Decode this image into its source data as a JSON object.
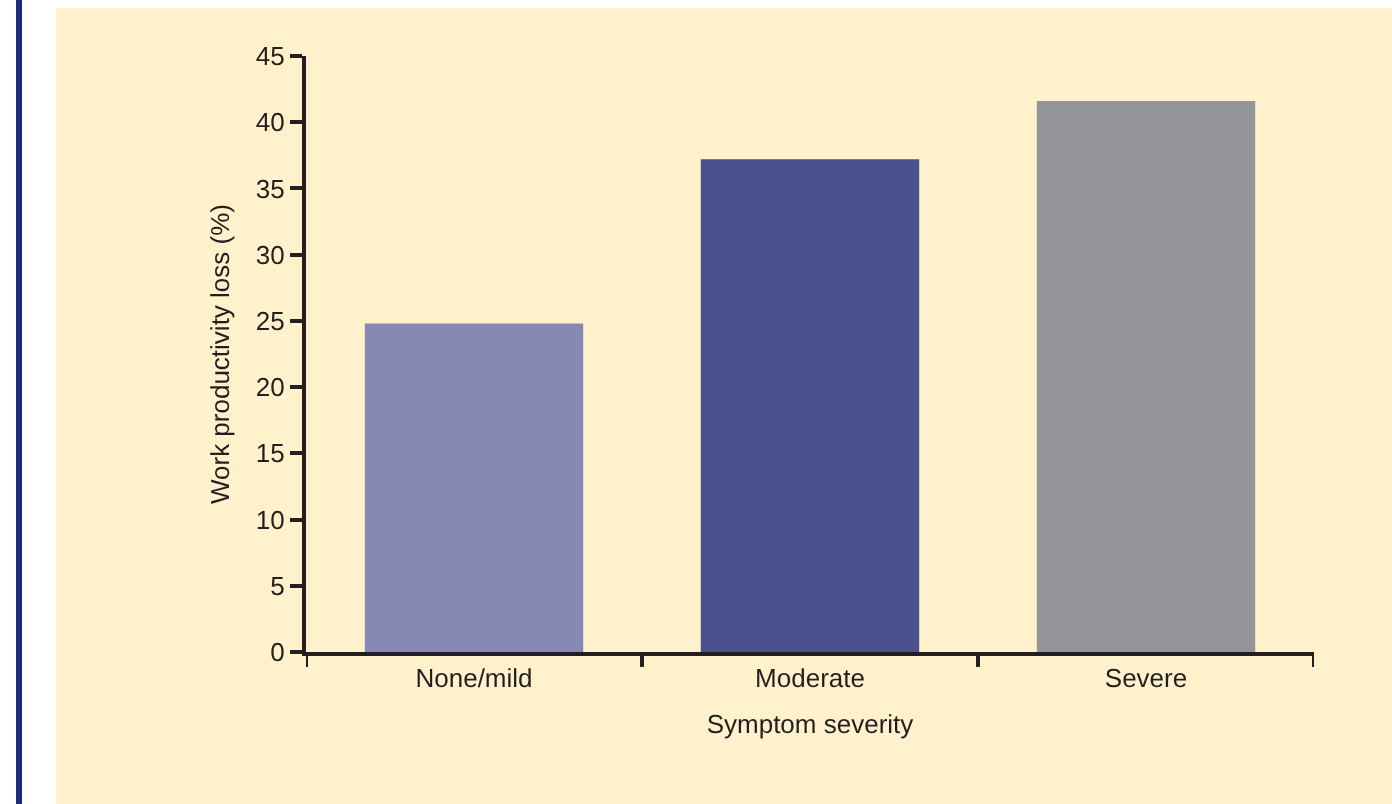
{
  "chart_data": {
    "type": "bar",
    "categories": [
      "None/mild",
      "Moderate",
      "Severe"
    ],
    "values": [
      24.8,
      37.2,
      41.6
    ],
    "colors": [
      "#8888b5",
      "#4b518e",
      "#939598"
    ],
    "xlabel": "Symptom severity",
    "ylabel": "Work productivity loss (%)",
    "ylim": [
      0,
      45
    ],
    "yticks": [
      0,
      5,
      10,
      15,
      20,
      25,
      30,
      35,
      40,
      45
    ],
    "grid": false
  }
}
